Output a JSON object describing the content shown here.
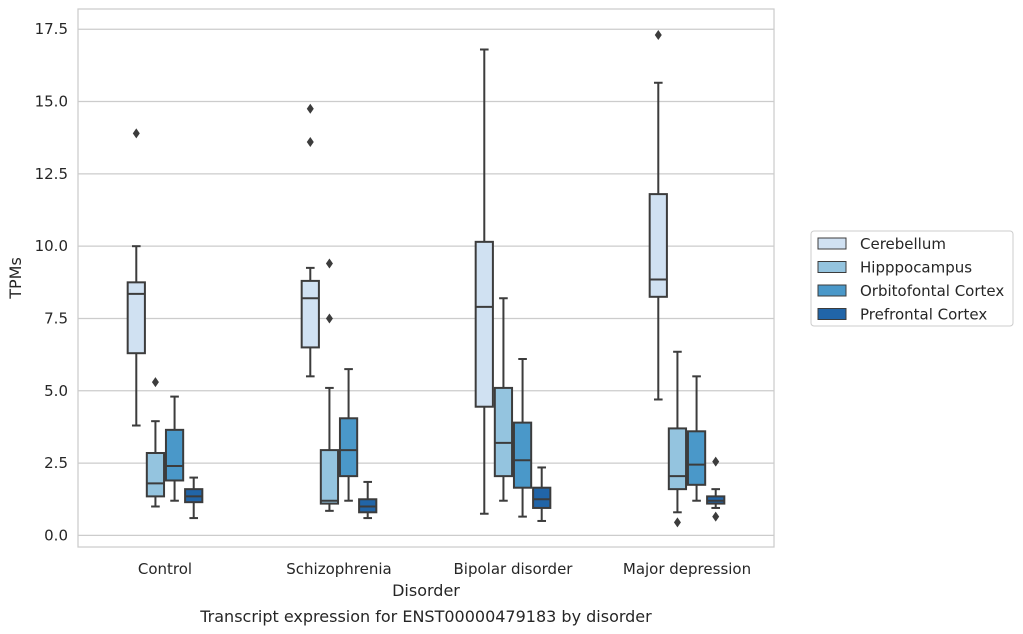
{
  "caption": "Transcript expression for ENST00000479183 by disorder",
  "chart_data": {
    "type": "box",
    "title": "",
    "xlabel": "Disorder",
    "ylabel": "TPMs",
    "ylim": [
      -0.4,
      18.2
    ],
    "yticks": [
      "0.0",
      "2.5",
      "5.0",
      "7.5",
      "10.0",
      "12.5",
      "15.0",
      "17.5"
    ],
    "ytick_values": [
      0,
      2.5,
      5,
      7.5,
      10,
      12.5,
      15,
      17.5
    ],
    "categories": [
      "Control",
      "Schizophrenia",
      "Bipolar disorder",
      "Major depression"
    ],
    "grid": "horizontal",
    "legend_position": "right",
    "series": [
      {
        "name": "Cerebellum",
        "color": "#d0e1f2",
        "boxes": [
          {
            "whislo": 3.8,
            "q1": 6.3,
            "med": 8.35,
            "q3": 8.75,
            "whishi": 10.0,
            "fliers": [
              13.9
            ]
          },
          {
            "whislo": 5.5,
            "q1": 6.5,
            "med": 8.2,
            "q3": 8.8,
            "whishi": 9.25,
            "fliers": [
              14.75,
              13.6
            ]
          },
          {
            "whislo": 0.75,
            "q1": 4.45,
            "med": 7.9,
            "q3": 10.15,
            "whishi": 16.8,
            "fliers": []
          },
          {
            "whislo": 4.7,
            "q1": 8.25,
            "med": 8.85,
            "q3": 11.8,
            "whishi": 15.65,
            "fliers": [
              17.3
            ]
          }
        ]
      },
      {
        "name": "Hipppocampus",
        "color": "#94c4df",
        "boxes": [
          {
            "whislo": 1.0,
            "q1": 1.35,
            "med": 1.8,
            "q3": 2.85,
            "whishi": 3.95,
            "fliers": [
              5.3
            ]
          },
          {
            "whislo": 0.85,
            "q1": 1.1,
            "med": 1.2,
            "q3": 2.95,
            "whishi": 5.1,
            "fliers": [
              9.4,
              7.5
            ]
          },
          {
            "whislo": 1.2,
            "q1": 2.05,
            "med": 3.2,
            "q3": 5.1,
            "whishi": 8.2,
            "fliers": []
          },
          {
            "whislo": 0.8,
            "q1": 1.6,
            "med": 2.05,
            "q3": 3.7,
            "whishi": 6.35,
            "fliers": [
              0.45
            ]
          }
        ]
      },
      {
        "name": "Orbitofontal Cortex",
        "color": "#4a98c9",
        "boxes": [
          {
            "whislo": 1.2,
            "q1": 1.9,
            "med": 2.4,
            "q3": 3.65,
            "whishi": 4.8,
            "fliers": []
          },
          {
            "whislo": 1.2,
            "q1": 2.05,
            "med": 2.95,
            "q3": 4.05,
            "whishi": 5.75,
            "fliers": []
          },
          {
            "whislo": 0.65,
            "q1": 1.65,
            "med": 2.6,
            "q3": 3.9,
            "whishi": 6.1,
            "fliers": []
          },
          {
            "whislo": 1.2,
            "q1": 1.75,
            "med": 2.45,
            "q3": 3.6,
            "whishi": 5.5,
            "fliers": []
          }
        ]
      },
      {
        "name": "Prefrontal Cortex",
        "color": "#2165a8",
        "boxes": [
          {
            "whislo": 0.6,
            "q1": 1.15,
            "med": 1.35,
            "q3": 1.6,
            "whishi": 2.0,
            "fliers": []
          },
          {
            "whislo": 0.6,
            "q1": 0.8,
            "med": 1.0,
            "q3": 1.25,
            "whishi": 1.85,
            "fliers": []
          },
          {
            "whislo": 0.5,
            "q1": 0.95,
            "med": 1.25,
            "q3": 1.65,
            "whishi": 2.35,
            "fliers": []
          },
          {
            "whislo": 0.95,
            "q1": 1.1,
            "med": 1.2,
            "q3": 1.35,
            "whishi": 1.6,
            "fliers": [
              2.55,
              0.65
            ]
          }
        ]
      }
    ]
  }
}
